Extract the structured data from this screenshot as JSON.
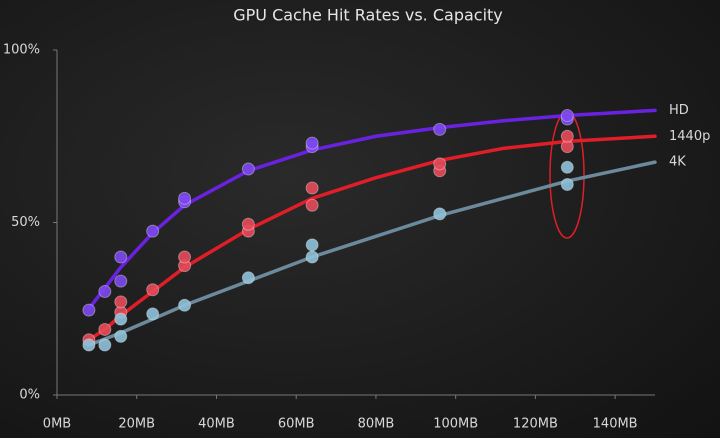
{
  "chart_data": {
    "type": "scatter",
    "title": "GPU Cache Hit Rates vs. Capacity",
    "xlim": [
      0,
      150
    ],
    "ylim": [
      0,
      100
    ],
    "xticks": [
      {
        "value": 0,
        "label": "0MB"
      },
      {
        "value": 20,
        "label": "20MB"
      },
      {
        "value": 40,
        "label": "40MB"
      },
      {
        "value": 60,
        "label": "60MB"
      },
      {
        "value": 80,
        "label": "80MB"
      },
      {
        "value": 100,
        "label": "100MB"
      },
      {
        "value": 120,
        "label": "120MB"
      },
      {
        "value": 140,
        "label": "140MB"
      }
    ],
    "yticks": [
      {
        "value": 0,
        "label": "0%"
      },
      {
        "value": 50,
        "label": "50%"
      },
      {
        "value": 100,
        "label": "100%"
      }
    ],
    "series": [
      {
        "name": "HD",
        "color": "#6a22e0",
        "point_color": "#7d48f0",
        "x": [
          8,
          12,
          16,
          16,
          24,
          32,
          32,
          48,
          64,
          64,
          96,
          128,
          128
        ],
        "values": [
          24.6,
          30,
          33,
          40,
          47.5,
          56,
          57,
          65.5,
          72,
          73,
          77,
          80,
          81
        ],
        "fit": {
          "x": [
            8,
            12,
            16,
            24,
            32,
            48,
            64,
            80,
            96,
            112,
            128,
            150
          ],
          "values": [
            25,
            31,
            37,
            47,
            55,
            65,
            71,
            75,
            77.5,
            79.5,
            81,
            82.5
          ]
        }
      },
      {
        "name": "1440p",
        "color": "#e01e28",
        "point_color": "#e84a5a",
        "x": [
          8,
          12,
          16,
          16,
          24,
          32,
          32,
          48,
          48,
          64,
          64,
          96,
          96,
          128,
          128
        ],
        "values": [
          16,
          19,
          24,
          27,
          30.5,
          37.5,
          40,
          47.5,
          49.5,
          55,
          60,
          65,
          67,
          72,
          75
        ],
        "fit": {
          "x": [
            8,
            12,
            16,
            24,
            32,
            48,
            64,
            80,
            96,
            112,
            128,
            150
          ],
          "values": [
            16,
            19,
            23,
            30,
            37,
            48,
            57,
            63,
            68,
            71.5,
            73.5,
            75
          ]
        }
      },
      {
        "name": "4K",
        "color": "#6c8a9c",
        "point_color": "#8ec2dc",
        "x": [
          8,
          12,
          16,
          16,
          24,
          32,
          48,
          64,
          64,
          96,
          128,
          128
        ],
        "values": [
          14.5,
          14.5,
          17,
          22,
          23.5,
          26,
          34,
          40,
          43.5,
          52.5,
          61,
          66
        ],
        "fit": {
          "x": [
            8,
            16,
            24,
            32,
            48,
            64,
            80,
            96,
            112,
            128,
            150
          ],
          "values": [
            14.5,
            18,
            22,
            26,
            33,
            40,
            46,
            52,
            57,
            62,
            67.5
          ]
        }
      }
    ]
  }
}
